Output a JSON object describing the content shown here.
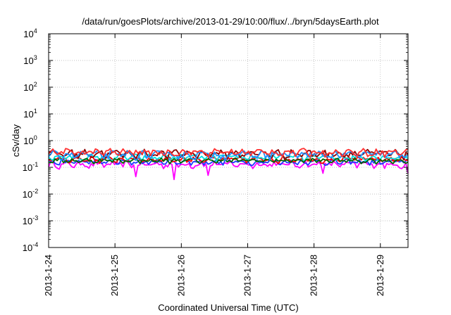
{
  "chart_data": {
    "type": "line",
    "title": "/data/run/goesPlots/archive/2013-01-29/10:00/flux/../bryn/5daysEarth.plot",
    "xlabel": "Coordinated Universal Time (UTC)",
    "ylabel": "cSv/day",
    "yscale": "log",
    "ylim": [
      0.0001,
      10000
    ],
    "xlim": [
      "2013-01-24T00:00",
      "2013-01-29T10:00"
    ],
    "grid": true,
    "legend": "none",
    "x_ticks": [
      "2013-1-24",
      "2013-1-25",
      "2013-1-26",
      "2013-1-27",
      "2013-1-28",
      "2013-1-29"
    ],
    "y_ticks": [
      {
        "base": "10",
        "exp": "-4"
      },
      {
        "base": "10",
        "exp": "-3"
      },
      {
        "base": "10",
        "exp": "-2"
      },
      {
        "base": "10",
        "exp": "-1"
      },
      {
        "base": "10",
        "exp": "0"
      },
      {
        "base": "10",
        "exp": "1"
      },
      {
        "base": "10",
        "exp": "2"
      },
      {
        "base": "10",
        "exp": "3"
      },
      {
        "base": "10",
        "exp": "4"
      }
    ],
    "series": [
      {
        "color": "#ff00ff",
        "base": 0.13,
        "amp": 0.03,
        "dips": [
          [
            "2013-01-25T07:30",
            0.045
          ],
          [
            "2013-01-25T21:00",
            0.035
          ],
          [
            "2013-01-26T09:30",
            0.05
          ],
          [
            "2013-01-28T03:00",
            0.06
          ],
          [
            "2013-01-29T10:00",
            0.06
          ]
        ]
      },
      {
        "color": "#1a3cff",
        "base": 0.16,
        "amp": 0.03
      },
      {
        "color": "#ff0000",
        "base": 0.2,
        "amp": 0.04
      },
      {
        "color": "#00e0e0",
        "base": 0.24,
        "amp": 0.05
      },
      {
        "color": "#006400",
        "base": 0.18,
        "amp": 0.03
      },
      {
        "color": "#8b0000",
        "base": 0.33,
        "amp": 0.09
      },
      {
        "color": "#1e90ff",
        "base": 0.3,
        "amp": 0.08
      },
      {
        "color": "#ff3030",
        "base": 0.37,
        "amp": 0.09
      }
    ]
  }
}
